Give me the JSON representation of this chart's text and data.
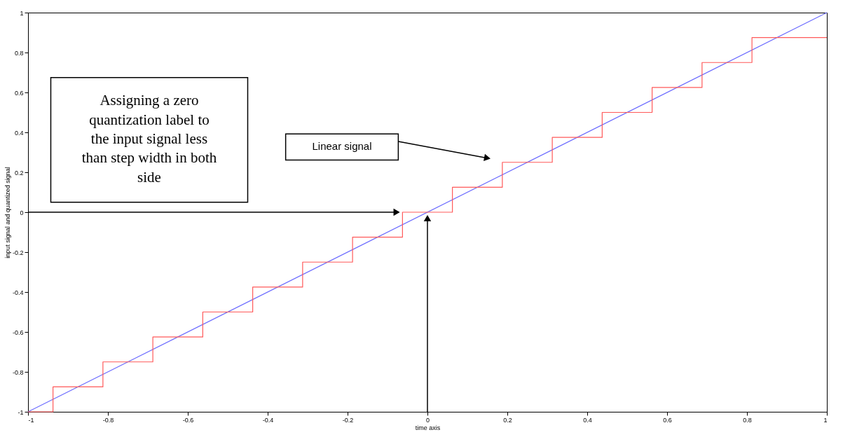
{
  "chart_data": {
    "type": "line",
    "xlabel": "time axis",
    "ylabel": "input signal and quantized signal",
    "xlim": [
      -1,
      1
    ],
    "ylim": [
      -1,
      1
    ],
    "xticks": [
      -1,
      -0.8,
      -0.6,
      -0.4,
      -0.2,
      0,
      0.2,
      0.4,
      0.6,
      0.8,
      1
    ],
    "yticks": [
      -1,
      -0.8,
      -0.6,
      -0.4,
      -0.2,
      0,
      0.2,
      0.4,
      0.6,
      0.8,
      1
    ],
    "grid": false,
    "series": [
      {
        "color": "#6f6fff",
        "x": [
          -1,
          1
        ],
        "values": [
          -1,
          1
        ]
      },
      {
        "type": "step",
        "color": "#ff5a5a",
        "x": [
          -1,
          -0.9375,
          -0.8125,
          -0.6875,
          -0.5625,
          -0.4375,
          -0.3125,
          -0.1875,
          -0.0625,
          0.0625,
          0.1875,
          0.3125,
          0.4375,
          0.5625,
          0.6875,
          0.8125,
          1
        ],
        "values": [
          -1,
          -0.875,
          -0.75,
          -0.625,
          -0.5,
          -0.375,
          -0.25,
          -0.125,
          0,
          0.125,
          0.25,
          0.375,
          0.5,
          0.625,
          0.75,
          0.875,
          0.875
        ]
      }
    ],
    "annotations": [
      "Assigning a zero quantization label to the input signal less than step width in both side",
      "Linear signal"
    ]
  }
}
